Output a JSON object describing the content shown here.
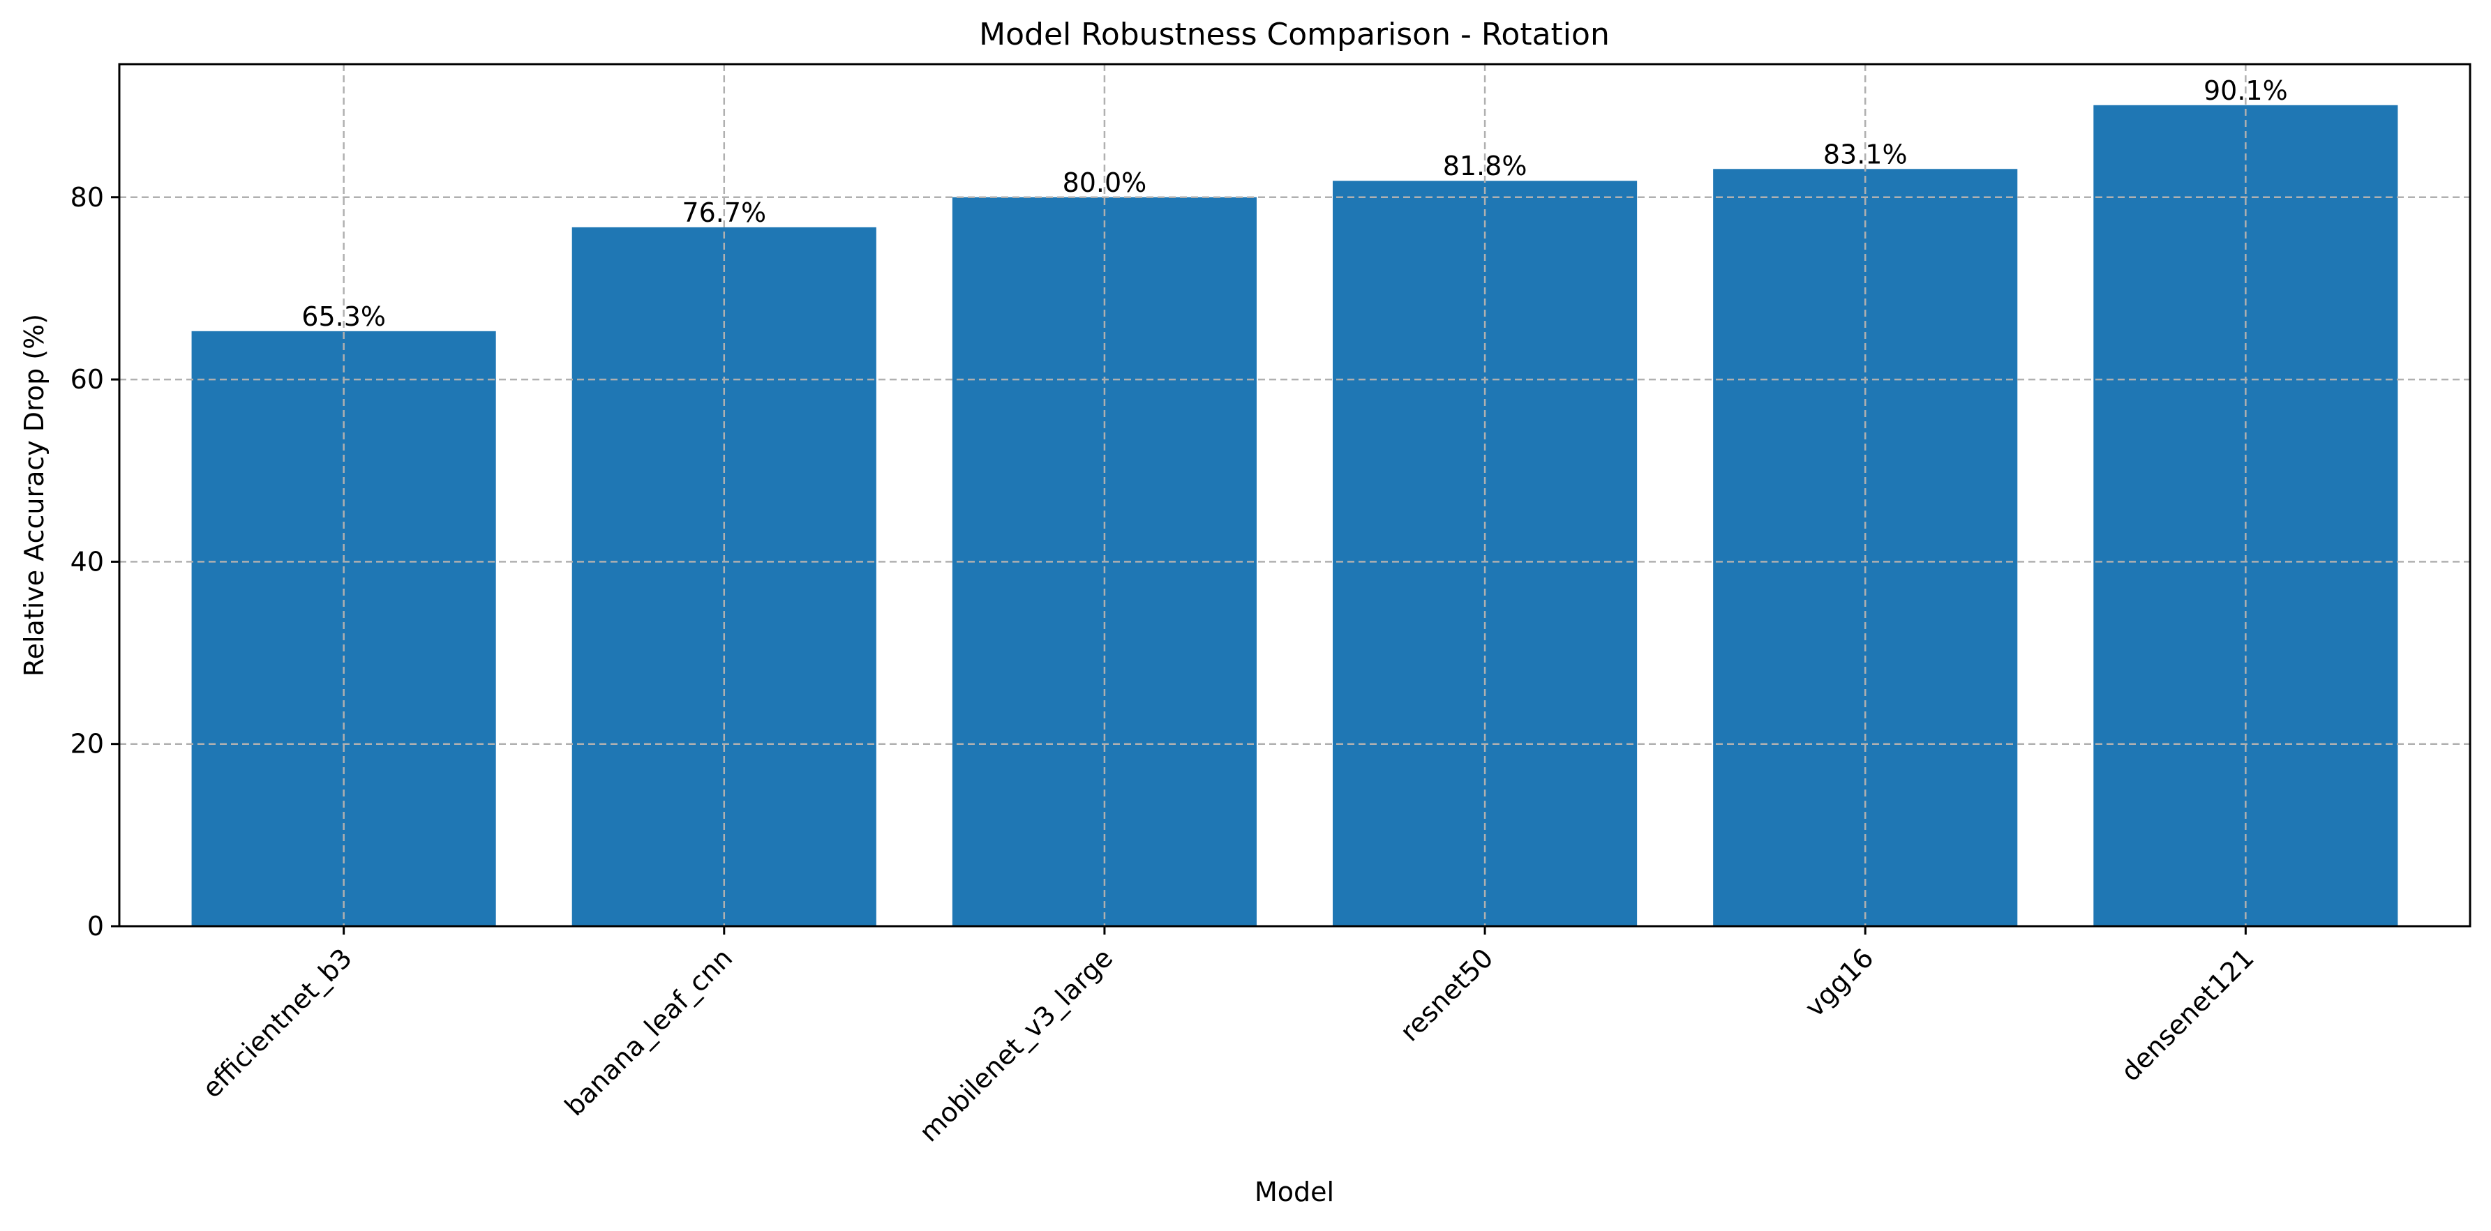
{
  "chart_data": {
    "type": "bar",
    "title": "Model Robustness Comparison - Rotation",
    "xlabel": "Model",
    "ylabel": "Relative Accuracy Drop (%)",
    "categories": [
      "efficientnet_b3",
      "banana_leaf_cnn",
      "mobilenet_v3_large",
      "resnet50",
      "vgg16",
      "densenet121"
    ],
    "values": [
      65.3,
      76.7,
      80.0,
      81.8,
      83.1,
      90.1
    ],
    "data_labels": [
      "65.3%",
      "76.7%",
      "80.0%",
      "81.8%",
      "83.1%",
      "90.1%"
    ],
    "ylim": [
      0,
      94.6
    ],
    "yticks": [
      0,
      20,
      40,
      60,
      80
    ],
    "grid": true,
    "bar_color": "#1f77b4"
  }
}
